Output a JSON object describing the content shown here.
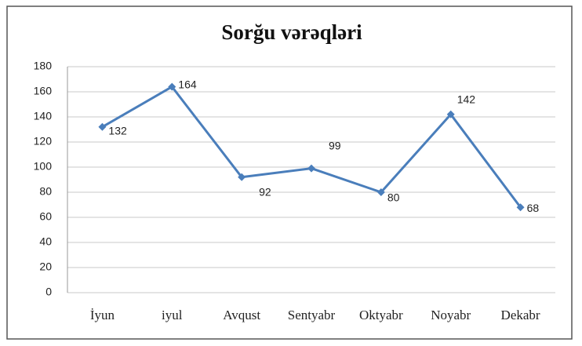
{
  "chart_data": {
    "type": "line",
    "title": "Sorğu vərəqləri",
    "categories": [
      "İyun",
      "iyul",
      "Avqust",
      "Sentyabr",
      "Oktyabr",
      "Noyabr",
      "Dekabr"
    ],
    "series": [
      {
        "name": "Sorğu vərəqləri",
        "color": "#4a7ebb",
        "values": [
          132,
          164,
          92,
          99,
          80,
          142,
          68
        ]
      }
    ],
    "ylim": [
      0,
      180
    ],
    "yticks": [
      0,
      20,
      40,
      60,
      80,
      100,
      120,
      140,
      160,
      180
    ],
    "grid": true
  }
}
